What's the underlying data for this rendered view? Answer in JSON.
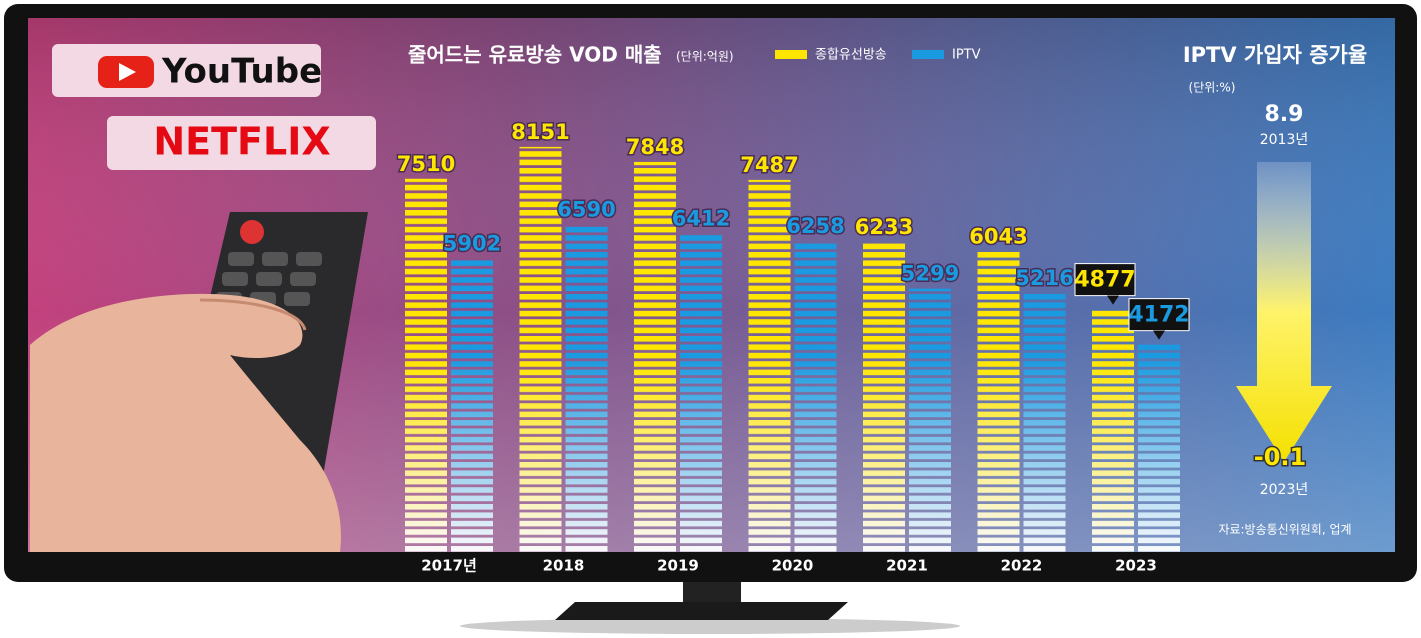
{
  "chart_data": {
    "type": "bar",
    "title": "줄어드는 유료방송 VOD 매출",
    "subtitle": "(단위:억원)",
    "categories": [
      "2017년",
      "2018",
      "2019",
      "2020",
      "2021",
      "2022",
      "2023"
    ],
    "series": [
      {
        "name": "종합유선방송",
        "color": "#ffe600",
        "values": [
          7510,
          8151,
          7848,
          7487,
          6233,
          6043,
          4877
        ]
      },
      {
        "name": "IPTV",
        "color": "#1a9ae0",
        "values": [
          5902,
          6590,
          6412,
          6258,
          5299,
          5216,
          4172
        ]
      }
    ]
  },
  "logos": {
    "youtube": "YouTube",
    "netflix": "NETFLIX"
  },
  "side_note": {
    "title": "IPTV 가입자 증가율",
    "unit": "(단위:%)",
    "start": {
      "value": 8.9,
      "label": "2013년"
    },
    "end": {
      "value": -0.1,
      "label": "2023년"
    }
  },
  "source": "자료:방송통신위원회, 업계"
}
